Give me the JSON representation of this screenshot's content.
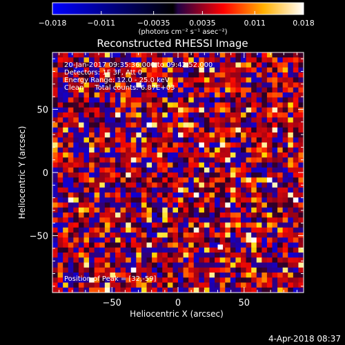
{
  "chart_data": {
    "type": "heatmap",
    "title": "Reconstructed RHESSI Image",
    "xlabel": "Heliocentric X (arcsec)",
    "ylabel": "Heliocentric Y (arcsec)",
    "xlim": [
      -95,
      95
    ],
    "ylim": [
      -95,
      95
    ],
    "x_ticks": [
      -50,
      0,
      50
    ],
    "y_ticks": [
      -50,
      0,
      50
    ],
    "colorbar": {
      "range": [
        -0.018,
        0.018
      ],
      "tick_values": [
        -0.018,
        -0.011,
        -0.0035,
        0.0035,
        0.011,
        0.018
      ],
      "tick_labels": [
        "−0.018",
        "−0.011",
        "−0.0035",
        "0.0035",
        "0.011",
        "0.018"
      ],
      "unit_label": "(photons cm⁻² s⁻¹ asec⁻²)",
      "colors": [
        "#0000ff",
        "#000000",
        "#ff0000",
        "#ffff00",
        "#ffffff"
      ]
    },
    "grid_cells_per_side": 48,
    "noise_seed": 20170120,
    "peak_position": [
      32,
      -59
    ],
    "annotations": [
      "20-Jan-2017 09:35:36.000 to 09:42:52.000",
      "Detectors: 1F 3F, Att 0",
      "Energy Range: 12.0 - 25.0 keV",
      "Clean     Total counts: 6.87E+03",
      "Position of Peak = [32,-59]"
    ]
  },
  "footer": {
    "date": "4-Apr-2018 08:37"
  }
}
